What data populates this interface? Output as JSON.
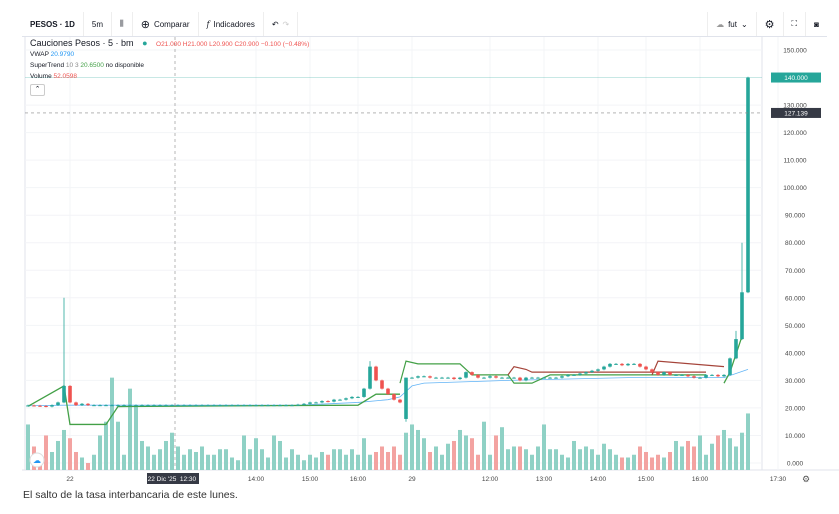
{
  "toolbar": {
    "symbol": "PESOS · 1D",
    "interval": "5m",
    "compare": "Comparar",
    "indicators": "Indicadores",
    "layout": "fut"
  },
  "legend": {
    "title": "Cauciones Pesos · 5 · bm",
    "ohlc": "O21.000 H21.000 L20.900 C20.900 −0.100 (−0.48%)",
    "vwap_label": "VWAP",
    "vwap_value": "20.9790",
    "st_label": "SuperTrend",
    "st_params": "10 3",
    "st_value": "20.6500",
    "st_status": "no disponible",
    "vol_label": "Volume",
    "vol_value": "52.0598"
  },
  "crosshair": {
    "date_label": "22 Dic '25",
    "time_label": "12:30"
  },
  "caption": "El salto de la tasa interbancaria de este lunes.",
  "colors": {
    "up": "#26a69a",
    "down": "#ef5350",
    "vol_up": "#8fd1c5",
    "vol_down": "#f3a3a1",
    "st_up": "#43a047",
    "st_down": "#a5443a",
    "vwap": "#64b5f6"
  },
  "chart_data": {
    "type": "candlestick",
    "ylim": [
      0,
      150
    ],
    "yticks": [
      "150.000",
      "130.000",
      "120.000",
      "110.000",
      "100.000",
      "90.000",
      "80.000",
      "70.000",
      "60.000",
      "50.000",
      "40.000",
      "30.000",
      "20.000",
      "10.000",
      "0.000"
    ],
    "ytick_values": [
      150,
      130,
      120,
      110,
      100,
      90,
      80,
      70,
      60,
      50,
      40,
      30,
      20,
      10,
      0
    ],
    "last_price_label": "140.000",
    "last_price": 140,
    "crosshair_price_label": "127.139",
    "crosshair_price": 127.139,
    "xticks": [
      {
        "label": "22",
        "bar": 7
      },
      {
        "label": "14:00",
        "bar": 38
      },
      {
        "label": "15:00",
        "bar": 47
      },
      {
        "label": "16:00",
        "bar": 55
      },
      {
        "label": "29",
        "bar": 64
      },
      {
        "label": "12:00",
        "bar": 77
      },
      {
        "label": "13:00",
        "bar": 86
      },
      {
        "label": "14:00",
        "bar": 95
      },
      {
        "label": "15:00",
        "bar": 103
      },
      {
        "label": "16:00",
        "bar": 112
      },
      {
        "label": "17:30",
        "bar": 125
      }
    ],
    "close": [
      20.9,
      20.8,
      20.7,
      20.5,
      21,
      22,
      28,
      22,
      21,
      21.5,
      21,
      21,
      21,
      21,
      21,
      21,
      21,
      21,
      21,
      21,
      21,
      21,
      21,
      21,
      21,
      21,
      21,
      21,
      21,
      21,
      21,
      21,
      21,
      21,
      21,
      21,
      21,
      21,
      21,
      21,
      21,
      21,
      21,
      21,
      21,
      21.2,
      21.5,
      22,
      22,
      22.5,
      22.3,
      23,
      23,
      23.5,
      24,
      24,
      27,
      35,
      30,
      27,
      25,
      23,
      22,
      31,
      31,
      31.5,
      31.5,
      31,
      31,
      31,
      31,
      30.5,
      31,
      33,
      32,
      31,
      31,
      31.5,
      31,
      31,
      31,
      31,
      30,
      31,
      31,
      31,
      31,
      31,
      31,
      31.5,
      32,
      32,
      32.5,
      33,
      33.5,
      34,
      35,
      36,
      36,
      35.5,
      36,
      36,
      35,
      34,
      33,
      32,
      33,
      32,
      32,
      32,
      31.5,
      31,
      31,
      32,
      32,
      31.5,
      32,
      38,
      45,
      62,
      140
    ],
    "volume": [
      14,
      6,
      3,
      10,
      4,
      8,
      12,
      9,
      4,
      2,
      0,
      3,
      10,
      15,
      31,
      15,
      3,
      27,
      21,
      8,
      6,
      3,
      5,
      8,
      11,
      6,
      3,
      5,
      4,
      6,
      3,
      3,
      5,
      5,
      2,
      1,
      10,
      5,
      9,
      5,
      2,
      10,
      8,
      2,
      5,
      3,
      1,
      3,
      2,
      4,
      3,
      5,
      5,
      3,
      5,
      3,
      9,
      3,
      4,
      6,
      4,
      6,
      3,
      11,
      14,
      12,
      9,
      4,
      6,
      3,
      7,
      8,
      12,
      10,
      9,
      3,
      15,
      3,
      10,
      13,
      5,
      6,
      6,
      5,
      3,
      6,
      14,
      5,
      5,
      3,
      2,
      8,
      5,
      6,
      5,
      3,
      7,
      5,
      3,
      2,
      2,
      3,
      6,
      4,
      2,
      3,
      2,
      4,
      8,
      6,
      8,
      6,
      10,
      3,
      7,
      10,
      12,
      9,
      6,
      11,
      18
    ],
    "vwap": [
      [
        0,
        20.8
      ],
      [
        6,
        21
      ],
      [
        20,
        21
      ],
      [
        45,
        21
      ],
      [
        55,
        22
      ],
      [
        60,
        23
      ],
      [
        62,
        24
      ],
      [
        64,
        28
      ],
      [
        66,
        29
      ],
      [
        80,
        30
      ],
      [
        100,
        31
      ],
      [
        116,
        31
      ],
      [
        120,
        34
      ]
    ],
    "supertrend_up": [
      [
        0,
        20.6
      ],
      [
        6,
        28
      ],
      [
        7,
        14
      ],
      [
        13,
        14
      ],
      [
        15,
        20.5
      ],
      [
        55,
        21
      ],
      [
        58,
        25
      ],
      [
        62,
        25
      ]
    ],
    "supertrend_down": [
      [
        62,
        29
      ],
      [
        63,
        37
      ],
      [
        65,
        36
      ],
      [
        72,
        36
      ],
      [
        74,
        32
      ],
      [
        80,
        32
      ],
      [
        81,
        29
      ],
      [
        84,
        29
      ],
      [
        87,
        32
      ],
      [
        113,
        32
      ]
    ],
    "supertrend_down2": [
      [
        80,
        32
      ],
      [
        81,
        35
      ],
      [
        83,
        34
      ],
      [
        84,
        33
      ],
      [
        113,
        33
      ]
    ],
    "supertrend_down3": [
      [
        104,
        32
      ],
      [
        105,
        37
      ],
      [
        116,
        35
      ]
    ],
    "supertrend_up2": [
      [
        116,
        29
      ],
      [
        117,
        33
      ],
      [
        119,
        46
      ]
    ]
  }
}
